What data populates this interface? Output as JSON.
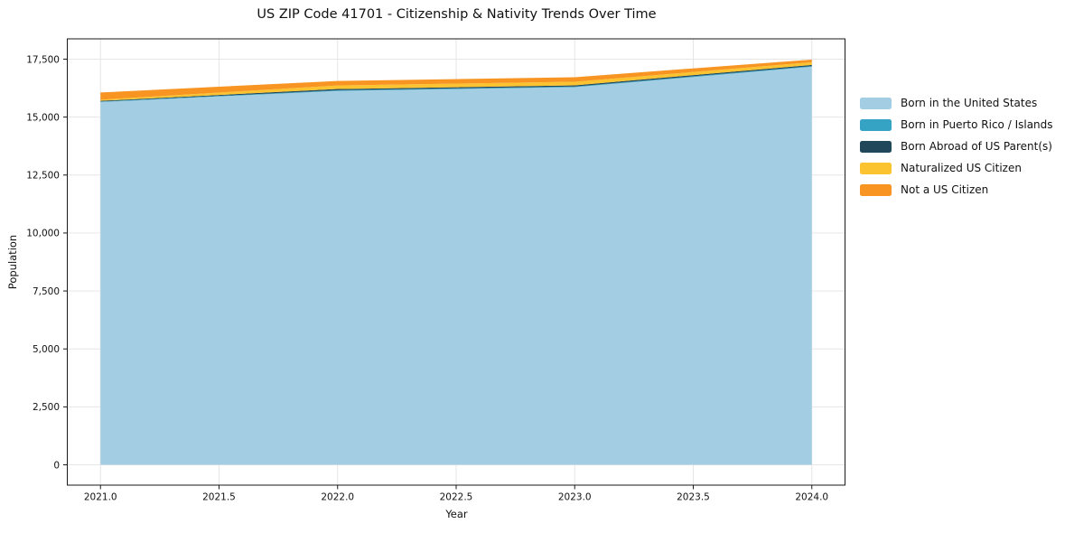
{
  "window": {
    "title": "US ZIP Code 41701 - Citizenship & Nativity Trends Over Time"
  },
  "chart_data": {
    "type": "area",
    "stacked": true,
    "title": "US ZIP Code 41701 - Citizenship & Nativity Trends Over Time",
    "xlabel": "Year",
    "ylabel": "Population",
    "x": [
      2021,
      2022,
      2023,
      2024
    ],
    "series": [
      {
        "name": "Born in the United States",
        "color": "#a3cde3",
        "values": [
          15650,
          16130,
          16290,
          17170
        ]
      },
      {
        "name": "Born in Puerto Rico / Islands",
        "color": "#35a3c3",
        "values": [
          20,
          30,
          30,
          30
        ]
      },
      {
        "name": "Born Abroad of US Parent(s)",
        "color": "#20485a",
        "values": [
          30,
          50,
          50,
          50
        ]
      },
      {
        "name": "Naturalized US Citizen",
        "color": "#fcc330",
        "values": [
          50,
          155,
          155,
          115
        ]
      },
      {
        "name": "Not a US Citizen",
        "color": "#f79422",
        "values": [
          310,
          195,
          195,
          115
        ]
      }
    ],
    "stack_totals": [
      16060,
      16560,
      16720,
      17480
    ],
    "x_ticks": {
      "values": [
        2021,
        2021.5,
        2022,
        2022.5,
        2023,
        2023.5,
        2024
      ],
      "labels": [
        "2021.0",
        "2021.5",
        "2022.0",
        "2022.5",
        "2023.0",
        "2023.5",
        "2024.0"
      ]
    },
    "y_ticks": {
      "values": [
        0,
        2500,
        5000,
        7500,
        10000,
        12500,
        15000,
        17500
      ],
      "labels": [
        "0",
        "2,500",
        "5,000",
        "7,500",
        "10,000",
        "12,500",
        "15,000",
        "17,500"
      ]
    },
    "xlim": [
      2020.86,
      2024.14
    ],
    "ylim": [
      -875,
      18375
    ],
    "grid": true,
    "legend_position": "right of plot, upper area, no frame"
  },
  "colors": {
    "background": "#ffffff",
    "grid": "#e6e6e6",
    "spine": "#1a1a1a",
    "tick": "#1a1a1a",
    "text": "#111111"
  }
}
